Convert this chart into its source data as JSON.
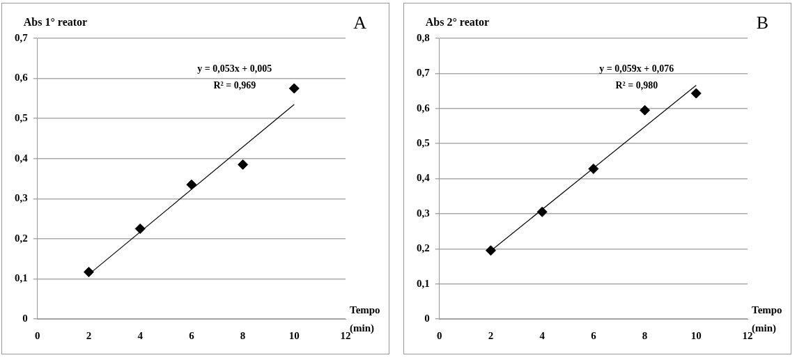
{
  "chart_data": [
    {
      "type": "scatter",
      "title": "A",
      "ylabel": "Abs 1° reator",
      "xlabel": "Tempo\n(min)",
      "xlim": [
        0,
        12
      ],
      "xticks": [
        0,
        2,
        4,
        6,
        8,
        10,
        12
      ],
      "ylim": [
        0,
        0.7
      ],
      "yticks": [
        {
          "value": 0,
          "label": "0"
        },
        {
          "value": 0.1,
          "label": "0,1"
        },
        {
          "value": 0.2,
          "label": "0,2"
        },
        {
          "value": 0.3,
          "label": "0,3"
        },
        {
          "value": 0.4,
          "label": "0,4"
        },
        {
          "value": 0.5,
          "label": "0,5"
        },
        {
          "value": 0.6,
          "label": "0,6"
        },
        {
          "value": 0.7,
          "label": "0,7"
        }
      ],
      "grid": "y",
      "legend": false,
      "series": [
        {
          "type": "scatter",
          "color": "#000000",
          "marker": "diamond",
          "x": [
            2,
            4,
            6,
            8,
            10
          ],
          "values": [
            0.117,
            0.225,
            0.335,
            0.385,
            0.575
          ]
        },
        {
          "type": "line",
          "color": "#000000",
          "marker": "none",
          "x": [
            2,
            10
          ],
          "values": [
            0.111,
            0.535
          ]
        }
      ],
      "annotations": [
        "y = 0,053x + 0,005",
        "R² = 0,969"
      ]
    },
    {
      "type": "scatter",
      "title": "B",
      "ylabel": "Abs 2° reator",
      "xlabel": "Tempo\n(min)",
      "xlim": [
        0,
        12
      ],
      "xticks": [
        0,
        2,
        4,
        6,
        8,
        10,
        12
      ],
      "ylim": [
        0,
        0.8
      ],
      "yticks": [
        {
          "value": 0,
          "label": "0"
        },
        {
          "value": 0.1,
          "label": "0,1"
        },
        {
          "value": 0.2,
          "label": "0,2"
        },
        {
          "value": 0.3,
          "label": "0,3"
        },
        {
          "value": 0.4,
          "label": "0,4"
        },
        {
          "value": 0.5,
          "label": "0,5"
        },
        {
          "value": 0.6,
          "label": "0,6"
        },
        {
          "value": 0.7,
          "label": "0,7"
        },
        {
          "value": 0.8,
          "label": "0,8"
        }
      ],
      "grid": "y",
      "legend": false,
      "series": [
        {
          "type": "scatter",
          "color": "#000000",
          "marker": "diamond",
          "x": [
            2,
            4,
            6,
            8,
            10
          ],
          "values": [
            0.195,
            0.305,
            0.428,
            0.595,
            0.643
          ]
        },
        {
          "type": "line",
          "color": "#000000",
          "marker": "none",
          "x": [
            2,
            10
          ],
          "values": [
            0.194,
            0.666
          ]
        }
      ],
      "annotations": [
        "y = 0,059x + 0,076",
        "R² = 0,980"
      ]
    }
  ]
}
